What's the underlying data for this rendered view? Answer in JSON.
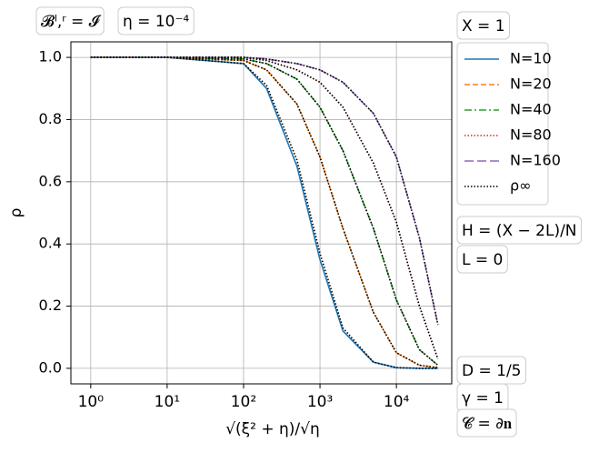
{
  "chart_data": {
    "type": "line",
    "xlabel": "√(ξ² + η)/√η",
    "ylabel": "ρ",
    "x": [
      1,
      10,
      100,
      200,
      500,
      1000,
      2000,
      5000,
      10000,
      20000,
      35000
    ],
    "xscale": "log",
    "xlim": [
      0.55,
      53000
    ],
    "ylim": [
      -0.05,
      1.05
    ],
    "xticks": [
      {
        "value": 1,
        "label": "10⁰"
      },
      {
        "value": 10,
        "label": "10¹"
      },
      {
        "value": 100,
        "label": "10²"
      },
      {
        "value": 1000,
        "label": "10³"
      },
      {
        "value": 10000,
        "label": "10⁴"
      }
    ],
    "yticks": [
      {
        "value": 0,
        "label": "0.0"
      },
      0.2,
      0.4,
      0.6,
      0.8,
      {
        "value": 1,
        "label": "1.0"
      }
    ],
    "grid": true,
    "legend": "outside right",
    "series": [
      {
        "name": "N=10",
        "color": "#1f77b4",
        "linestyle": "solid",
        "values": [
          1,
          1,
          0.98,
          0.9,
          0.65,
          0.35,
          0.12,
          0.02,
          0.002,
          0,
          0
        ]
      },
      {
        "name": "N=20",
        "color": "#ff7f0e",
        "linestyle": "dashed",
        "values": [
          1,
          1,
          0.99,
          0.96,
          0.85,
          0.68,
          0.45,
          0.18,
          0.05,
          0.01,
          0.002
        ]
      },
      {
        "name": "N=40",
        "color": "#2ca02c",
        "linestyle": "dashdot",
        "values": [
          1,
          1,
          0.995,
          0.98,
          0.93,
          0.84,
          0.7,
          0.45,
          0.22,
          0.06,
          0.01
        ]
      },
      {
        "name": "N=80",
        "color": "#d62728",
        "linestyle": "dotted",
        "values": [
          1,
          1,
          1,
          0.99,
          0.96,
          0.92,
          0.84,
          0.66,
          0.47,
          0.2,
          0.03
        ]
      },
      {
        "name": "N=160",
        "color": "#9467bd",
        "linestyle": "longdash",
        "values": [
          1,
          1,
          1,
          0.995,
          0.98,
          0.96,
          0.92,
          0.82,
          0.68,
          0.42,
          0.14
        ]
      },
      {
        "name": "ρ∞",
        "color": "#000000",
        "linestyle": "dotted",
        "values": [
          [
            1,
            1,
            0.98,
            0.91,
            0.67,
            0.37,
            0.13,
            0.02,
            0.002,
            0,
            0
          ],
          [
            1,
            1,
            0.99,
            0.96,
            0.85,
            0.68,
            0.45,
            0.18,
            0.05,
            0.01,
            0.002
          ],
          [
            1,
            1,
            0.995,
            0.98,
            0.93,
            0.84,
            0.7,
            0.45,
            0.22,
            0.06,
            0.01
          ],
          [
            1,
            1,
            1,
            0.99,
            0.96,
            0.92,
            0.84,
            0.66,
            0.47,
            0.2,
            0.03
          ],
          [
            1,
            1,
            1,
            0.995,
            0.98,
            0.96,
            0.92,
            0.82,
            0.68,
            0.42,
            0.14
          ]
        ]
      }
    ],
    "annotations": [
      "𝓑ˡ,ʳ = 𝓘",
      "η = 10⁻⁴",
      "X = 1",
      "H = (X − 2L)/N",
      "L = 0",
      "D = 1/5",
      "γ = 1",
      "𝓒 = ∂𝐧"
    ]
  }
}
